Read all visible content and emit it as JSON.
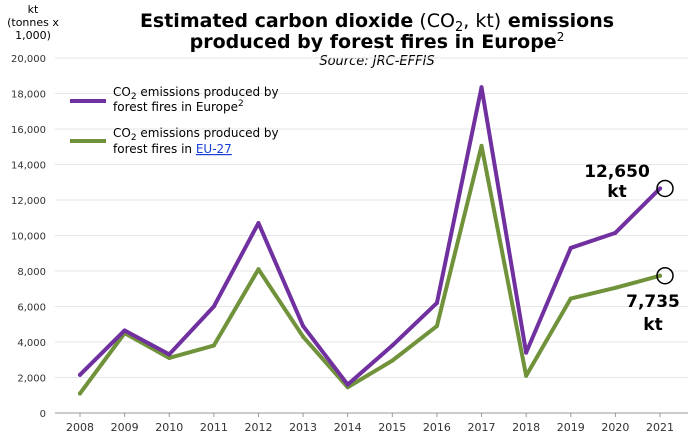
{
  "title": {
    "part1": "Estimated carbon dioxide",
    "paren_open": " (CO",
    "sub": "2",
    "paren_close": ", kt)",
    "part2": " emissions",
    "line2": "produced by forest fires in Europe",
    "sup": "2",
    "source": "Source: JRC-EFFIS"
  },
  "y_unit": [
    "kt",
    "(tonnes x",
    "1,000)"
  ],
  "callouts": {
    "europe": [
      "12,650",
      "kt"
    ],
    "eu27": [
      "7,735",
      "kt"
    ]
  },
  "colors": {
    "europe": "#7030a0",
    "eu27": "#70923a"
  },
  "chart_data": {
    "type": "line",
    "title": "Estimated carbon dioxide (CO2, kt) emissions produced by forest fires in Europe",
    "subtitle": "Source: JRC-EFFIS",
    "ylabel": "kt (tonnes x 1,000)",
    "xlabel": "",
    "ylim": [
      0,
      20000
    ],
    "yticks": [
      0,
      2000,
      4000,
      6000,
      8000,
      10000,
      12000,
      14000,
      16000,
      18000,
      20000
    ],
    "ytick_labels": [
      "0",
      "2,000",
      "4,000",
      "6,000",
      "8,000",
      "10,000",
      "12,000",
      "14,000",
      "16,000",
      "18,000",
      "20,000"
    ],
    "grid": true,
    "legend_position": "top-left",
    "x": [
      "2008",
      "2009",
      "2010",
      "2011",
      "2012",
      "2013",
      "2014",
      "2015",
      "2016",
      "2017",
      "2018",
      "2019",
      "2020",
      "2021"
    ],
    "series": [
      {
        "name_pre": "CO",
        "name_sub": "2",
        "name_line1_rest": " emissions produced by",
        "name_line2": "forest fires in Europe",
        "name_sup": "2",
        "values": [
          2150,
          4650,
          3300,
          6000,
          10700,
          4900,
          1600,
          3800,
          6200,
          18350,
          3400,
          9300,
          10150,
          12650
        ]
      },
      {
        "name_pre": "CO",
        "name_sub": "2",
        "name_line1_rest": " emissions produced by",
        "name_line2": "forest fires in ",
        "name_link": "EU-27",
        "values": [
          1100,
          4500,
          3100,
          3800,
          8100,
          4300,
          1450,
          2950,
          4900,
          15050,
          2100,
          6450,
          7050,
          7735
        ]
      }
    ]
  }
}
